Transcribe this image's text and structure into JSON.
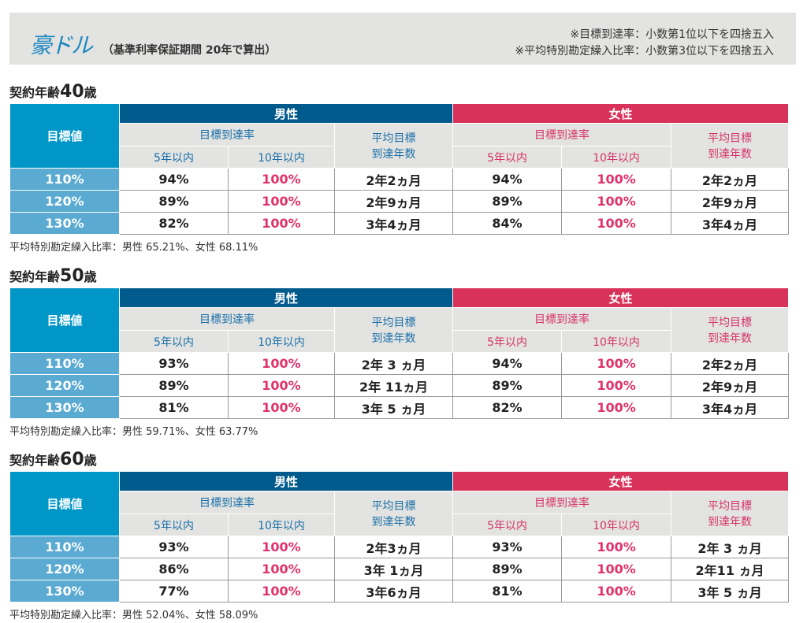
{
  "header": {
    "brand": "豪ドル",
    "subtitle": "（基準利率保証期間 20年で算出）",
    "notes": [
      "※目標到達率：小数第1位以下を四捨五入",
      "※平均特別勘定繰入比率：小数第3位以下を四捨五入"
    ]
  },
  "labels": {
    "target": "目標値",
    "male": "男性",
    "female": "女性",
    "rate": "目標到達率",
    "within5": "5年以内",
    "within10": "10年以内",
    "avg": "平均目標到達年数"
  },
  "colors": {
    "male": "#005a8c",
    "female": "#d8325a",
    "label": "#0096c8",
    "row_label": "#5aaad2",
    "accent_pink": "#e0326a"
  },
  "sections": [
    {
      "title_prefix": "契約年齢",
      "age": "40",
      "title_suffix": "歳",
      "rows": [
        [
          "110%",
          "94%",
          "100%",
          "2年2ヵ月",
          "94%",
          "100%",
          "2年2ヵ月"
        ],
        [
          "120%",
          "89%",
          "100%",
          "2年9ヵ月",
          "89%",
          "100%",
          "2年9ヵ月"
        ],
        [
          "130%",
          "82%",
          "100%",
          "3年4ヵ月",
          "84%",
          "100%",
          "3年4ヵ月"
        ]
      ],
      "footnote": "平均特別勘定繰入比率：男性 65.21%、女性 68.11%"
    },
    {
      "title_prefix": "契約年齢",
      "age": "50",
      "title_suffix": "歳",
      "rows": [
        [
          "110%",
          "93%",
          "100%",
          "2年 3 ヵ月",
          "94%",
          "100%",
          "2年2ヵ月"
        ],
        [
          "120%",
          "89%",
          "100%",
          "2年 11ヵ月",
          "89%",
          "100%",
          "2年9ヵ月"
        ],
        [
          "130%",
          "81%",
          "100%",
          "3年 5 ヵ月",
          "82%",
          "100%",
          "3年4ヵ月"
        ]
      ],
      "footnote": "平均特別勘定繰入比率：男性 59.71%、女性 63.77%"
    },
    {
      "title_prefix": "契約年齢",
      "age": "60",
      "title_suffix": "歳",
      "rows": [
        [
          "110%",
          "93%",
          "100%",
          "2年3ヵ月",
          "93%",
          "100%",
          "2年 3 ヵ月"
        ],
        [
          "120%",
          "86%",
          "100%",
          "3年 1ヵ月",
          "89%",
          "100%",
          "2年11 ヵ月"
        ],
        [
          "130%",
          "77%",
          "100%",
          "3年6ヵ月",
          "81%",
          "100%",
          "3年 5 ヵ月"
        ]
      ],
      "footnote": "平均特別勘定繰入比率：男性 52.04%、女性 58.09%"
    }
  ]
}
